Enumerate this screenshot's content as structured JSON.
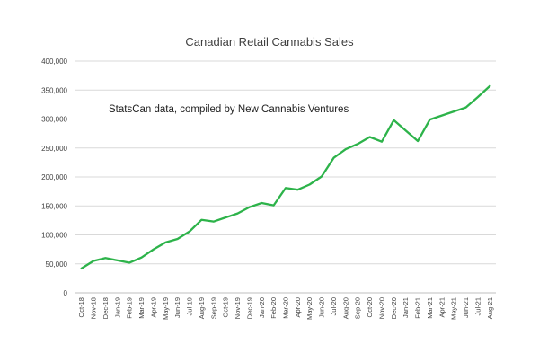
{
  "chart_data": {
    "type": "line",
    "title": "Canadian Retail Cannabis Sales",
    "annotation": "StatsCan data, compiled by New Cannabis Ventures",
    "xlabel": "",
    "ylabel": "",
    "ylim": [
      0,
      400000
    ],
    "y_ticks": [
      0,
      50000,
      100000,
      150000,
      200000,
      250000,
      300000,
      350000,
      400000
    ],
    "y_tick_labels": [
      "0",
      "50,000",
      "100,000",
      "150,000",
      "200,000",
      "250,000",
      "300,000",
      "350,000",
      "400,000"
    ],
    "grid": true,
    "line_color": "#2db34a",
    "categories": [
      "Oct-18",
      "Nov-18",
      "Dec-18",
      "Jan-19",
      "Feb-19",
      "Mar-19",
      "Apr-19",
      "May-19",
      "Jun-19",
      "Jul-19",
      "Aug-19",
      "Sep-19",
      "Oct-19",
      "Nov-19",
      "Dec-19",
      "Jan-20",
      "Feb-20",
      "Mar-20",
      "Apr-20",
      "May-20",
      "Jun-20",
      "Jul-20",
      "Aug-20",
      "Sep-20",
      "Oct-20",
      "Nov-20",
      "Dec-20",
      "Jan-21",
      "Feb-21",
      "Mar-21",
      "Apr-21",
      "May-21",
      "Jun-21",
      "Jul-21",
      "Aug-21"
    ],
    "series": [
      {
        "name": "Retail Cannabis Sales",
        "values": [
          42000,
          55000,
          60000,
          56000,
          52000,
          61000,
          75000,
          87000,
          93000,
          106000,
          126000,
          123000,
          130000,
          137000,
          148000,
          155000,
          151000,
          181000,
          178000,
          187000,
          201000,
          233000,
          248000,
          257000,
          269000,
          261000,
          298000,
          280000,
          262000,
          299000,
          306000,
          313000,
          320000,
          338000,
          357000
        ]
      }
    ]
  }
}
